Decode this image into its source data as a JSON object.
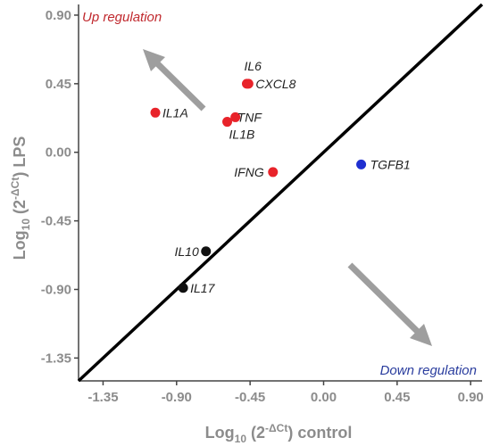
{
  "chart_data": {
    "type": "scatter",
    "title": "",
    "xlabel": {
      "base": "Log",
      "sub": "10",
      "open": " (2",
      "sup": "-ΔCt",
      "close": ") control"
    },
    "ylabel": {
      "base": "Log",
      "sub": "10",
      "open": " (2",
      "sup": "-ΔCt",
      "close": ") LPS"
    },
    "xlim": [
      -1.5,
      0.97
    ],
    "ylim": [
      -1.5,
      0.97
    ],
    "x_ticks": [
      -1.35,
      -0.9,
      -0.45,
      0.0,
      0.45,
      0.9
    ],
    "x_tick_labels": [
      "-1.35",
      "-0.90",
      "-0.45",
      "0.00",
      "0.45",
      "0.90"
    ],
    "y_ticks": [
      0.9,
      0.45,
      0.0,
      -0.45,
      -0.9,
      -1.35
    ],
    "y_tick_labels": [
      "0.90",
      "0.45",
      "0.00",
      "-0.45",
      "-0.90",
      "-1.35"
    ],
    "grid": false,
    "diagonal": "y = x",
    "annotations": {
      "up": {
        "text": "Up regulation",
        "color": "#c0282d"
      },
      "down": {
        "text": "Down regulation",
        "color": "#2a3d9e"
      }
    },
    "points": [
      {
        "label": "IL6",
        "x": -0.47,
        "y": 0.45,
        "color": "#e8232a"
      },
      {
        "label": "CXCL8",
        "x": -0.46,
        "y": 0.45,
        "color": "#e8232a"
      },
      {
        "label": "IL1A",
        "x": -1.03,
        "y": 0.26,
        "color": "#e8232a"
      },
      {
        "label": "TNF",
        "x": -0.54,
        "y": 0.23,
        "color": "#e8232a"
      },
      {
        "label": "IL1B",
        "x": -0.59,
        "y": 0.2,
        "color": "#e8232a"
      },
      {
        "label": "IFNG",
        "x": -0.31,
        "y": -0.13,
        "color": "#e8232a"
      },
      {
        "label": "TGFB1",
        "x": 0.23,
        "y": -0.08,
        "color": "#1f2fd0"
      },
      {
        "label": "IL10",
        "x": -0.72,
        "y": -0.65,
        "color": "#111111"
      },
      {
        "label": "IL17",
        "x": -0.86,
        "y": -0.89,
        "color": "#111111"
      }
    ]
  }
}
